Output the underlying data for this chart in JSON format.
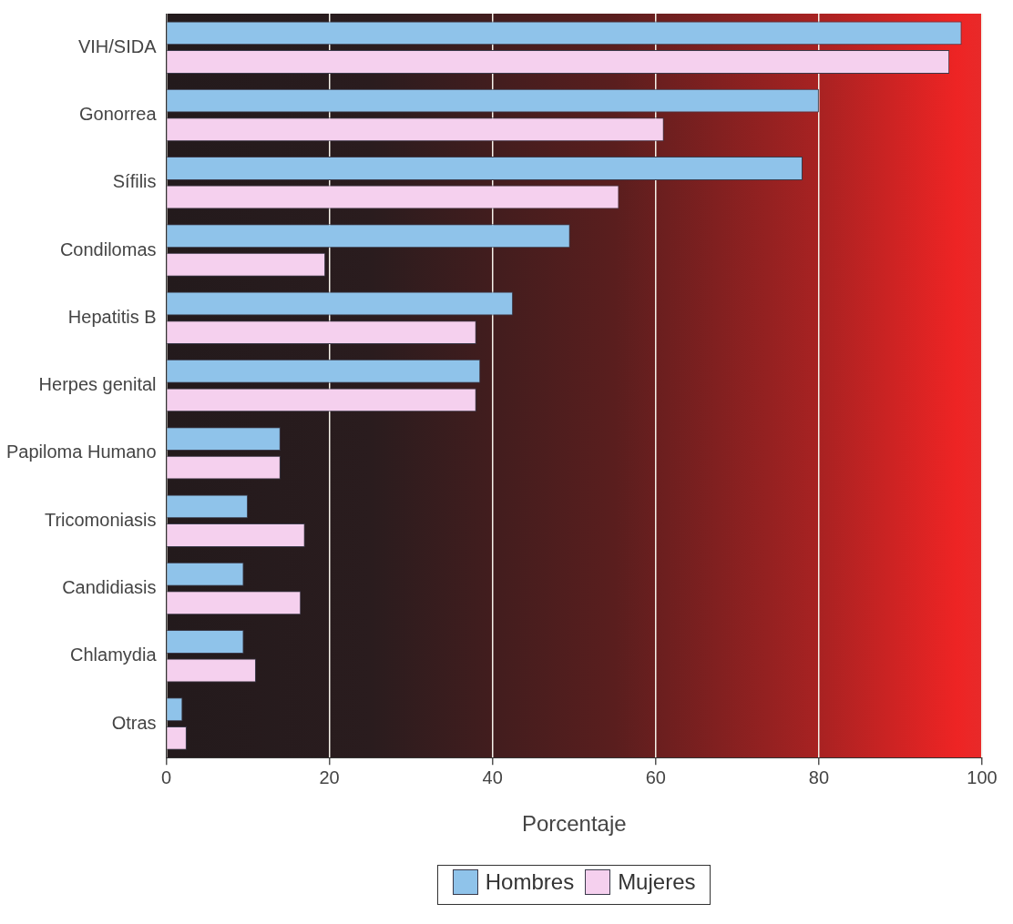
{
  "chart_data": {
    "type": "bar",
    "orientation": "horizontal",
    "xlabel": "Porcentaje",
    "categories": [
      "VIH/SIDA",
      "Gonorrea",
      "Sífilis",
      "Condilomas",
      "Hepatitis B",
      "Herpes genital",
      "Papiloma Humano",
      "Tricomoniasis",
      "Candidiasis",
      "Chlamydia",
      "Otras"
    ],
    "series": [
      {
        "name": "Hombres",
        "color": "#8fc3ea",
        "values": [
          97.5,
          80,
          78,
          49.5,
          42.5,
          38.5,
          14,
          10,
          9.5,
          9.5,
          2
        ]
      },
      {
        "name": "Mujeres",
        "color": "#f5d0ee",
        "values": [
          96,
          61,
          55.5,
          19.5,
          38,
          38,
          14,
          17,
          16.5,
          11,
          2.5
        ]
      }
    ],
    "xlim": [
      0,
      100
    ],
    "xticks": [
      0,
      20,
      40,
      60,
      80,
      100
    ],
    "grid": "x",
    "legend": "bottom"
  }
}
